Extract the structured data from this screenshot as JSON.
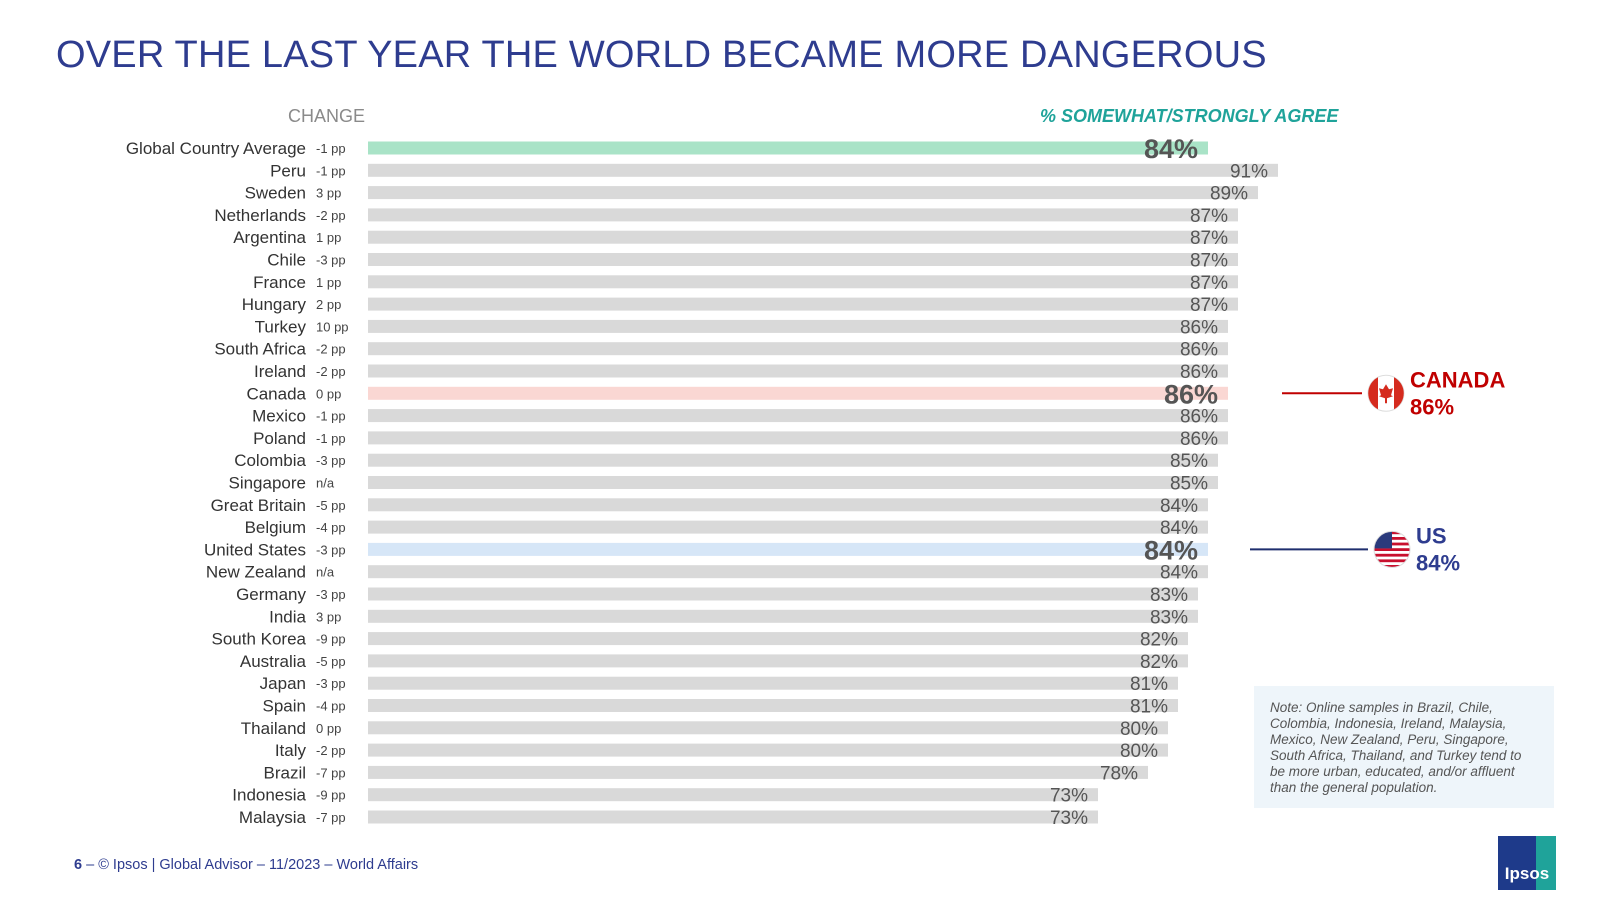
{
  "title": "OVER THE LAST YEAR THE WORLD BECAME MORE DANGEROUS",
  "headers": {
    "change": "CHANGE",
    "agree": "% SOMEWHAT/STRONGLY AGREE"
  },
  "colors": {
    "title": "#2E3C8F",
    "bar_default": "#D9D9D9",
    "bar_global": "#A9E3C7",
    "bar_canada": "#FAD7D3",
    "bar_us": "#D6E6F7",
    "canada": "#C00000",
    "us": "#1F2E6E",
    "change_positive": "#1FA39A",
    "change_negative": "#C00000",
    "change_neutral": "#444444"
  },
  "chart_data": {
    "type": "bar",
    "orientation": "horizontal",
    "title": "OVER THE LAST YEAR THE WORLD BECAME MORE DANGEROUS",
    "value_axis_label": "% SOMEWHAT/STRONGLY AGREE",
    "change_column_label": "CHANGE",
    "xlim": [
      0,
      100
    ],
    "categories": [
      "Global Country Average",
      "Peru",
      "Sweden",
      "Netherlands",
      "Argentina",
      "Chile",
      "France",
      "Hungary",
      "Turkey",
      "South Africa",
      "Ireland",
      "Canada",
      "Mexico",
      "Poland",
      "Colombia",
      "Singapore",
      "Great Britain",
      "Belgium",
      "United States",
      "New Zealand",
      "Germany",
      "India",
      "South Korea",
      "Australia",
      "Japan",
      "Spain",
      "Thailand",
      "Italy",
      "Brazil",
      "Indonesia",
      "Malaysia"
    ],
    "values": [
      84,
      91,
      89,
      87,
      87,
      87,
      87,
      87,
      86,
      86,
      86,
      86,
      86,
      86,
      85,
      85,
      84,
      84,
      84,
      84,
      83,
      83,
      82,
      82,
      81,
      81,
      80,
      80,
      78,
      73,
      73
    ],
    "value_labels": [
      "84%",
      "91%",
      "89%",
      "87%",
      "87%",
      "87%",
      "87%",
      "87%",
      "86%",
      "86%",
      "86%",
      "86%",
      "86%",
      "86%",
      "85%",
      "85%",
      "84%",
      "84%",
      "84%",
      "84%",
      "83%",
      "83%",
      "82%",
      "82%",
      "81%",
      "81%",
      "80%",
      "80%",
      "78%",
      "73%",
      "73%"
    ],
    "change_labels": [
      "-1 pp",
      "-1 pp",
      "3 pp",
      "-2 pp",
      "1 pp",
      "-3 pp",
      "1 pp",
      "2 pp",
      "10 pp",
      "-2 pp",
      "-2 pp",
      "0 pp",
      "-1 pp",
      "-1 pp",
      "-3 pp",
      "n/a",
      "-5 pp",
      "-4 pp",
      "-3 pp",
      "n/a",
      "-3 pp",
      "3 pp",
      "-9 pp",
      "-5 pp",
      "-3 pp",
      "-4 pp",
      "0 pp",
      "-2 pp",
      "-7 pp",
      "-9 pp",
      "-7 pp"
    ],
    "change_status": [
      "neutral",
      "neutral",
      "neutral",
      "neutral",
      "neutral",
      "neutral",
      "neutral",
      "neutral",
      "positive",
      "neutral",
      "neutral",
      "neutral",
      "neutral",
      "neutral",
      "neutral",
      "neutral",
      "negative",
      "negative",
      "neutral",
      "neutral",
      "neutral",
      "neutral",
      "negative",
      "negative",
      "neutral",
      "negative",
      "neutral",
      "neutral",
      "negative",
      "negative",
      "negative"
    ],
    "highlights": {
      "Global Country Average": "global",
      "Canada": "canada",
      "United States": "us"
    }
  },
  "callouts": {
    "canada": {
      "name": "CANADA",
      "value": "86%",
      "flag": "canada-flag-icon"
    },
    "us": {
      "name": "US",
      "value": "84%",
      "flag": "us-flag-icon"
    }
  },
  "note": "Note: Online samples in Brazil, Chile, Colombia, Indonesia, Ireland, Malaysia, Mexico, New Zealand, Peru, Singapore, South Africa, Thailand, and Turkey tend to be more urban, educated, and/or affluent than the general population.",
  "footer": {
    "page": "6",
    "separator": " – ",
    "text": "© Ipsos | Global Advisor – 11/2023 – World Affairs"
  },
  "logo": {
    "text": "Ipsos",
    "icon": "ipsos-logo-icon"
  }
}
